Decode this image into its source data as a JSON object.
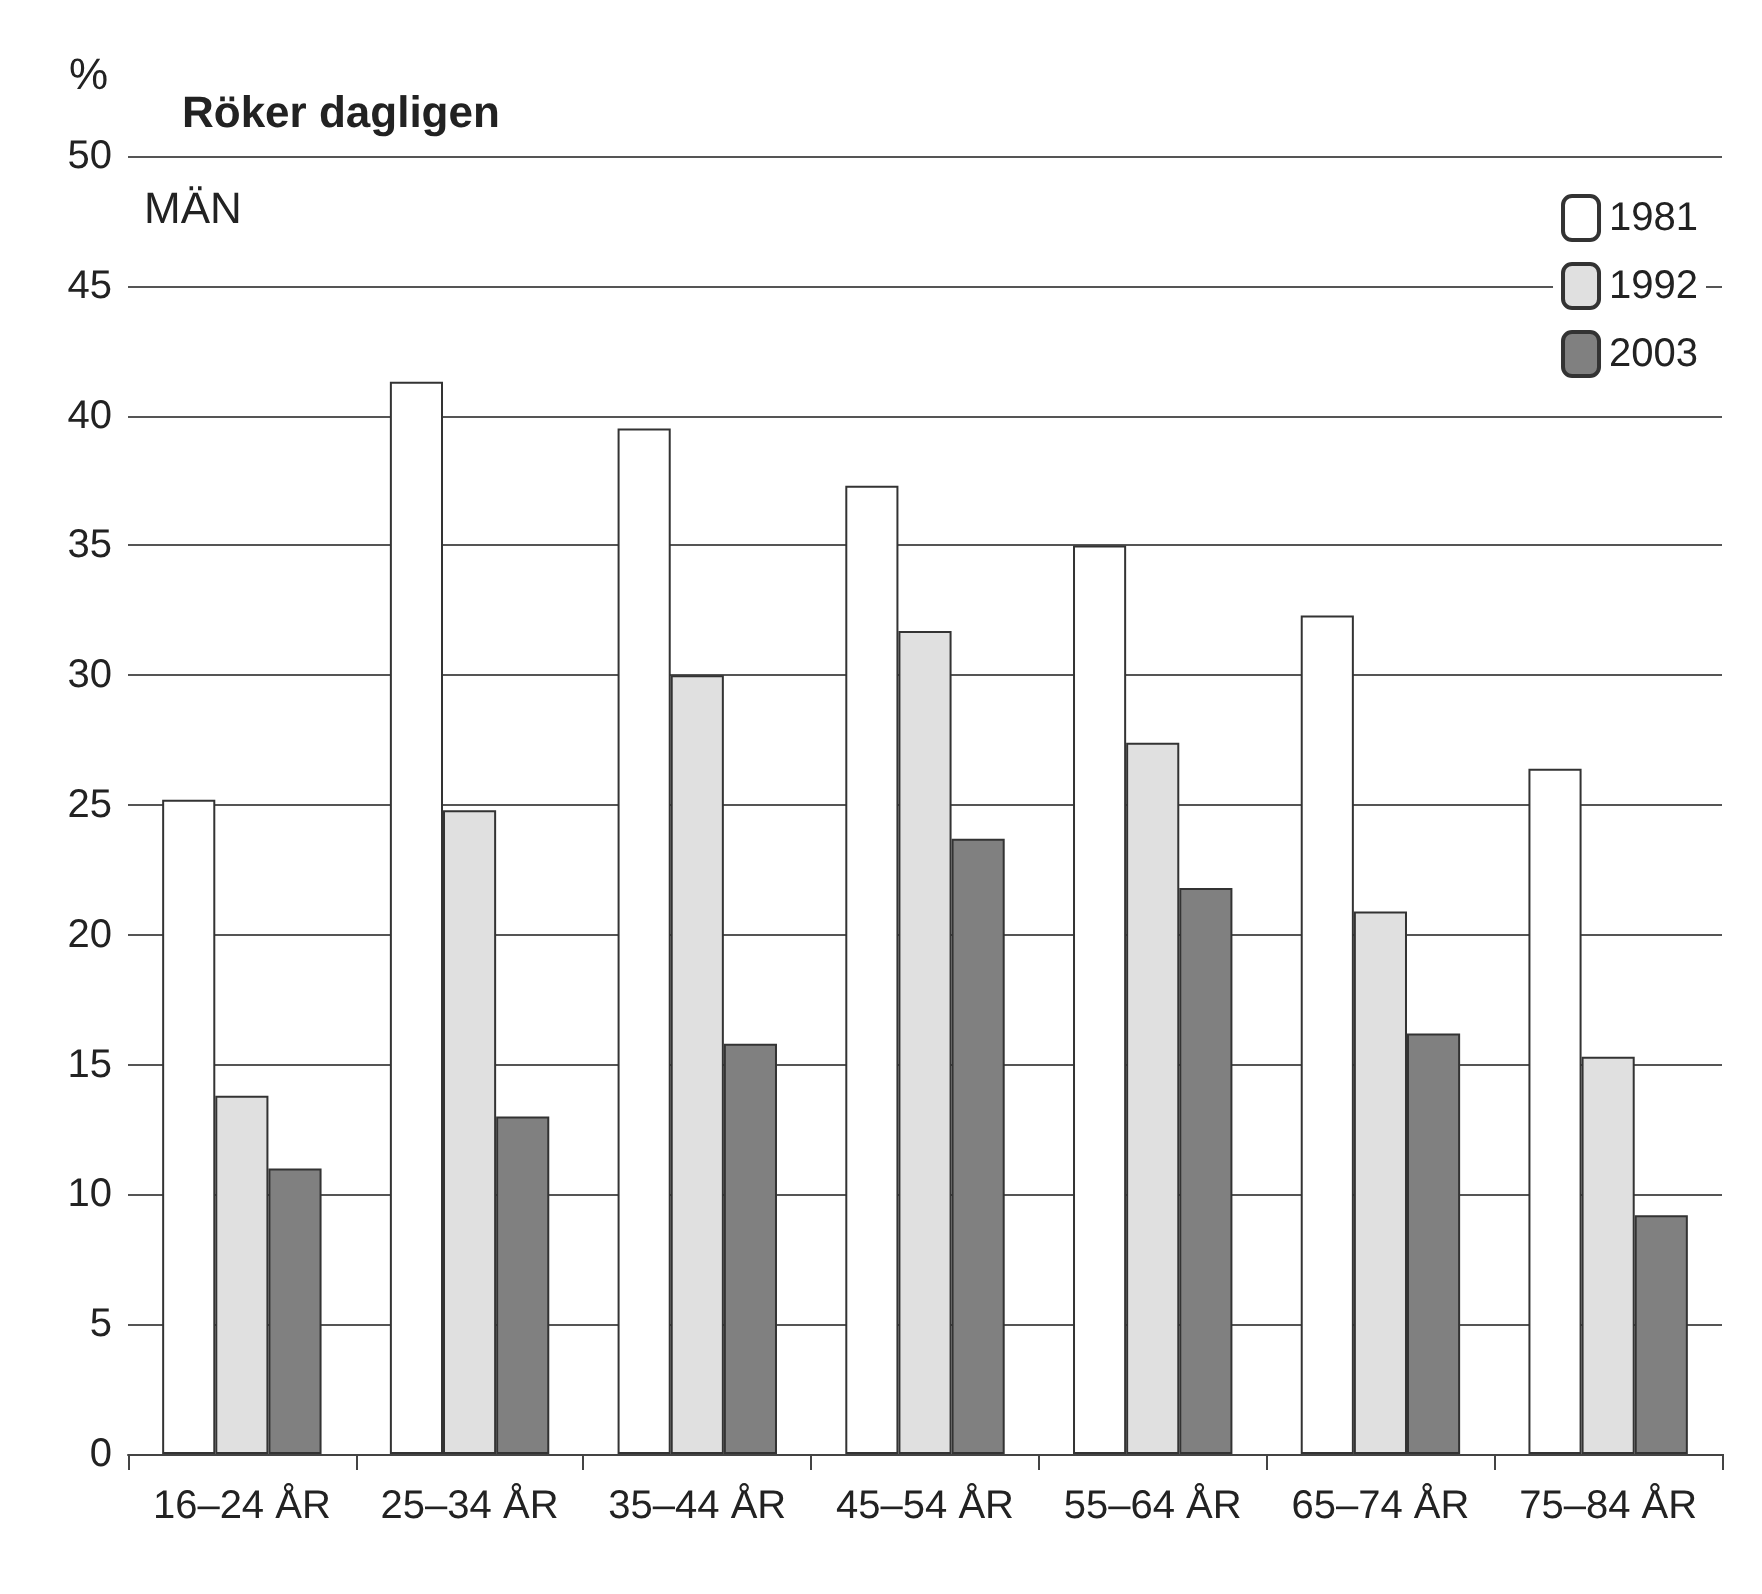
{
  "chart_data": {
    "type": "bar",
    "title": "Röker dagligen",
    "ylabel": "%",
    "annotations": [
      "MÄN"
    ],
    "categories": [
      "16–24 ÅR",
      "25–34 ÅR",
      "35–44 ÅR",
      "45–54 ÅR",
      "55–64 ÅR",
      "65–74 ÅR",
      "75–84 ÅR"
    ],
    "series": [
      {
        "name": "1981",
        "color": "#ffffff",
        "values": [
          25.2,
          41.3,
          39.5,
          37.3,
          35.0,
          32.3,
          26.4
        ]
      },
      {
        "name": "1992",
        "color": "#e0e0e0",
        "values": [
          13.8,
          24.8,
          30.0,
          31.7,
          27.4,
          20.9,
          15.3
        ]
      },
      {
        "name": "2003",
        "color": "#808080",
        "values": [
          11.0,
          13.0,
          15.8,
          23.7,
          21.8,
          16.2,
          9.2
        ]
      }
    ],
    "ylim": [
      0,
      50
    ],
    "yticks": [
      0,
      5,
      10,
      15,
      20,
      25,
      30,
      35,
      40,
      45,
      50
    ],
    "grid": "y",
    "legend": "top right"
  }
}
